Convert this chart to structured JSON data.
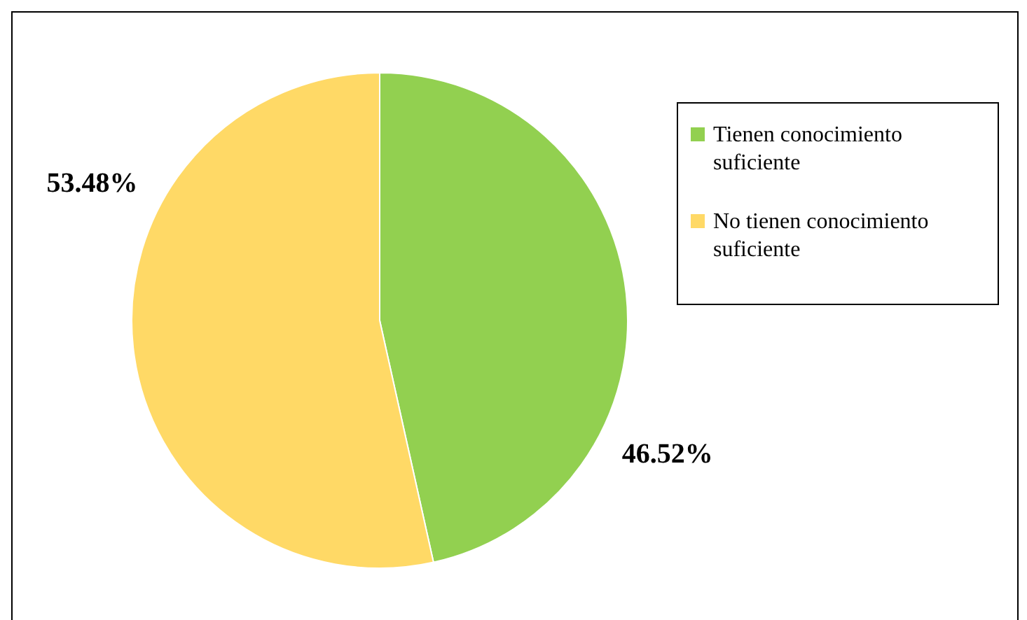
{
  "chart_data": {
    "type": "pie",
    "categories": [
      "Tienen conocimiento suficiente",
      "No tienen conocimiento suficiente"
    ],
    "values": [
      46.52,
      53.48
    ],
    "colors": [
      "#92d050",
      "#ffd966"
    ],
    "value_labels": [
      "46.52%",
      "53.48%"
    ],
    "legend": "right"
  }
}
